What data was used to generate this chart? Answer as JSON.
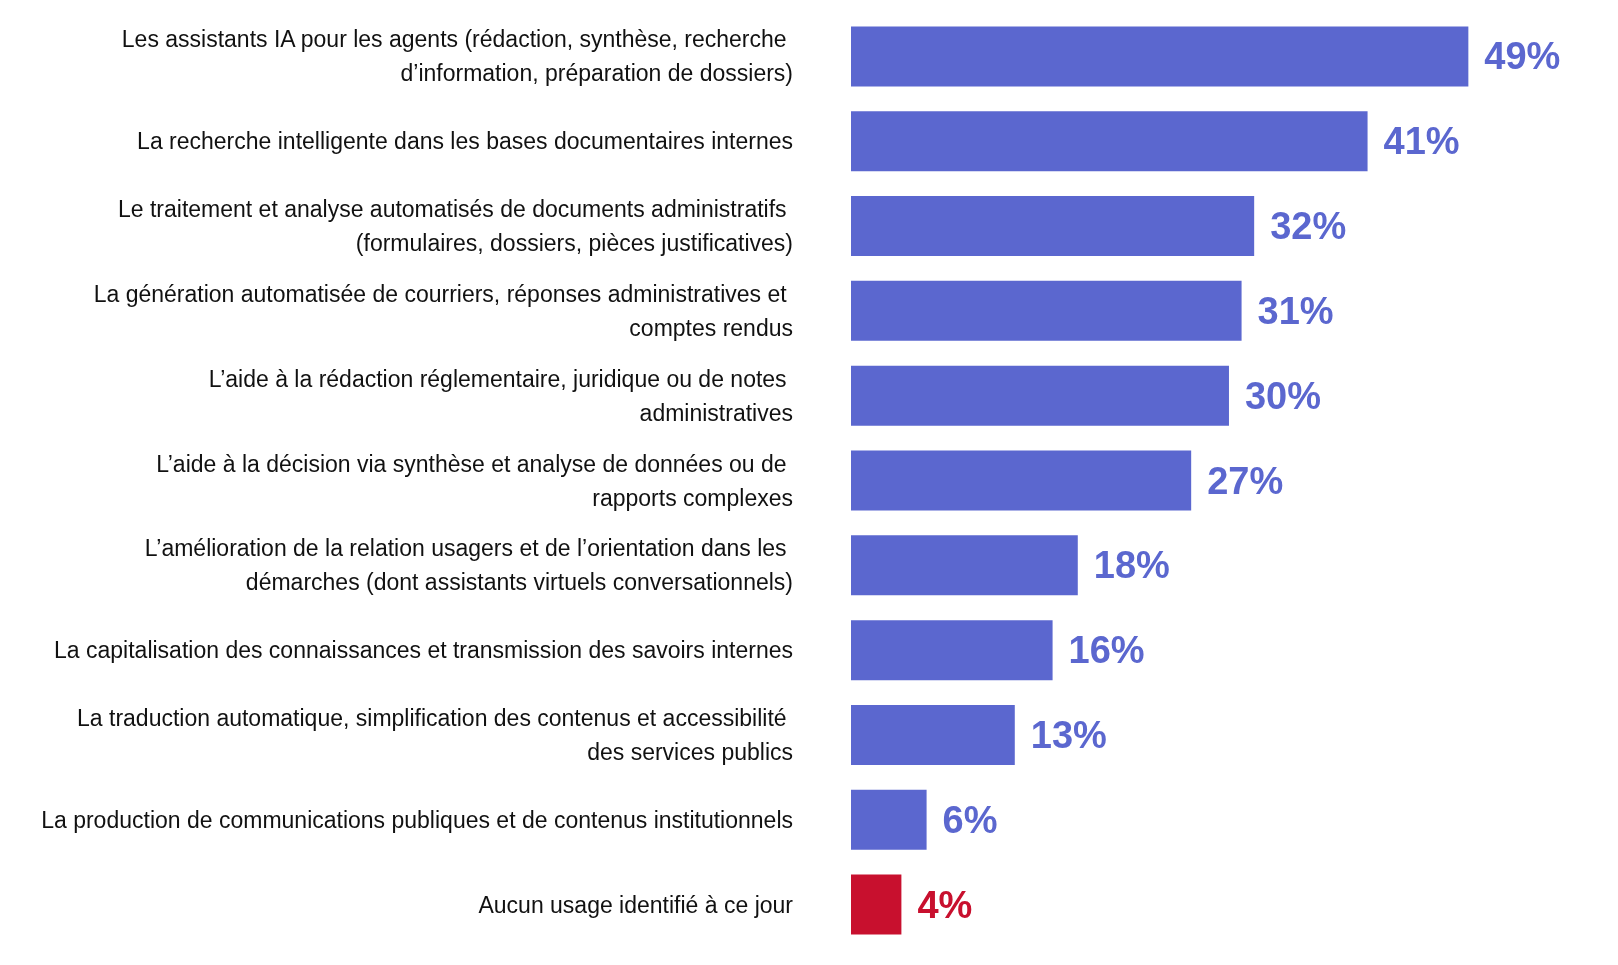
{
  "chart_data": {
    "type": "bar",
    "orientation": "horizontal",
    "categories": [
      "Les assistants IA pour les agents (rédaction, synthèse, recherche d’information, préparation de dossiers)",
      "La recherche intelligente dans les bases documentaires internes",
      "Le traitement et analyse automatisés de documents administratifs (formulaires, dossiers, pièces justificatives)",
      "La génération automatisée de courriers, réponses administratives et comptes rendus",
      "L’aide à la rédaction réglementaire, juridique ou de notes administratives",
      "L’aide à la décision via synthèse et analyse de données ou de rapports complexes",
      "L’amélioration de la relation usagers et de l’orientation dans les démarches (dont assistants virtuels conversationnels)",
      "La capitalisation des connaissances et transmission des savoirs internes",
      "La traduction automatique, simplification des contenus et accessibilité des services publics",
      "La production de communications publiques et de contenus institutionnels",
      "Aucun usage identifié à ce jour"
    ],
    "values": [
      49,
      41,
      32,
      31,
      30,
      27,
      18,
      16,
      13,
      6,
      4
    ],
    "colors": [
      "#5b67cf",
      "#5b67cf",
      "#5b67cf",
      "#5b67cf",
      "#5b67cf",
      "#5b67cf",
      "#5b67cf",
      "#5b67cf",
      "#5b67cf",
      "#5b67cf",
      "#c8102e"
    ],
    "value_labels": [
      "49%",
      "41%",
      "32%",
      "31%",
      "30%",
      "27%",
      "18%",
      "16%",
      "13%",
      "6%",
      "4%"
    ]
  }
}
